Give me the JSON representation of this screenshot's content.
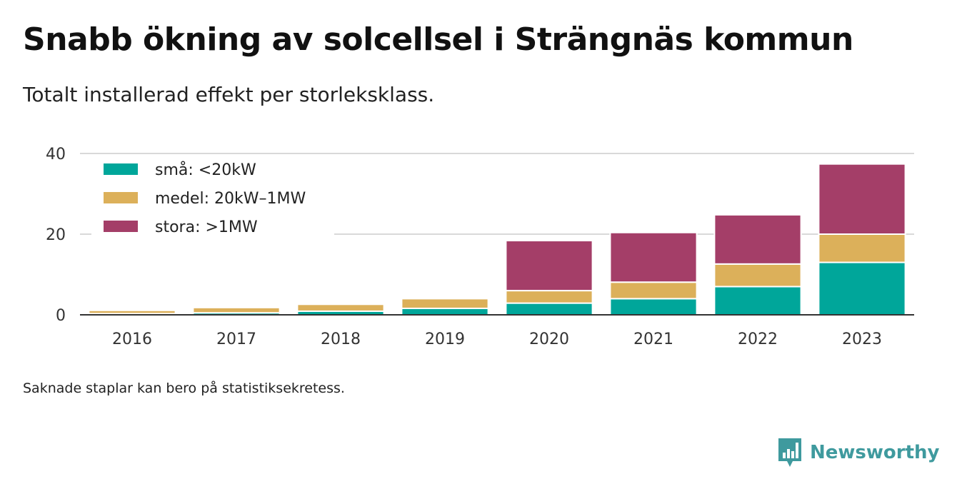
{
  "header": {
    "title": "Snabb ökning av solcellsel i Strängnäs kommun",
    "subtitle": "Totalt installerad effekt per storleksklass."
  },
  "footnote": "Saknade staplar kan bero på statistiksekretess.",
  "brand": {
    "name": "Newsworthy",
    "icon": "newsworthy-logo-icon",
    "color": "#3f9a9e"
  },
  "chart_data": {
    "type": "bar",
    "stacked": true,
    "categories": [
      "2016",
      "2017",
      "2018",
      "2019",
      "2020",
      "2021",
      "2022",
      "2023"
    ],
    "series": [
      {
        "name": "små: <20kW",
        "color": "#00a69a",
        "values": [
          0.3,
          0.5,
          0.9,
          1.6,
          2.9,
          4.0,
          7.0,
          13.0
        ]
      },
      {
        "name": "medel: 20kW–1MW",
        "color": "#dcb05a",
        "values": [
          0.8,
          1.3,
          1.7,
          2.4,
          3.1,
          4.1,
          5.6,
          7.0
        ]
      },
      {
        "name": "stora: >1MW",
        "color": "#a43e68",
        "values": [
          0,
          0,
          0,
          0,
          12.4,
          12.3,
          12.2,
          17.4
        ]
      }
    ],
    "yticks": [
      0,
      20,
      40
    ],
    "ylim": [
      0,
      40
    ],
    "grid": true,
    "legend": "top-left"
  }
}
